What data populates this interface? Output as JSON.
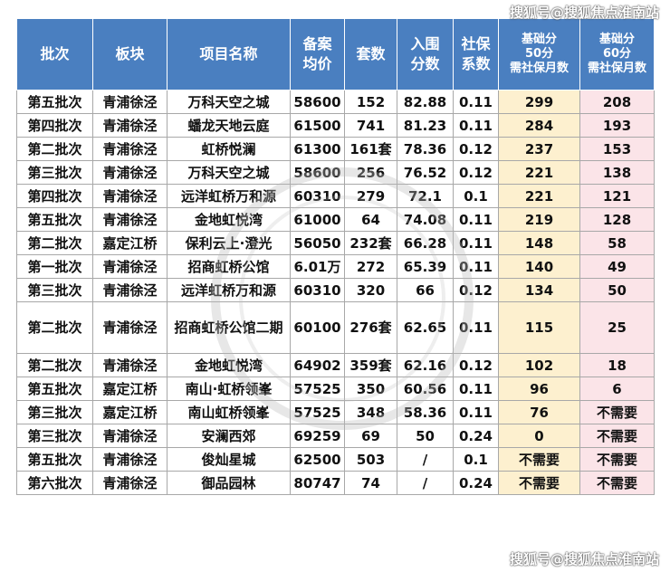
{
  "watermark": {
    "top": "搜狐号@搜狐焦点淮南站",
    "bottom": "搜狐号@搜狐焦点淮南站"
  },
  "table": {
    "headers": [
      "批次",
      "板块",
      "项目名称",
      "备案\n均价",
      "套数",
      "入围\n分数",
      "社保\n系数",
      "基础分\n50分\n需社保月数",
      "基础分\n60分\n需社保月数"
    ],
    "rows": [
      [
        "第五批次",
        "青浦徐泾",
        "万科天空之城",
        "58600",
        "152",
        "82.88",
        "0.11",
        "299",
        "208"
      ],
      [
        "第四批次",
        "青浦徐泾",
        "蟠龙天地云庭",
        "61500",
        "741",
        "81.23",
        "0.11",
        "284",
        "193"
      ],
      [
        "第二批次",
        "青浦徐泾",
        "虹桥悦澜",
        "61300",
        "161套",
        "78.36",
        "0.12",
        "237",
        "153"
      ],
      [
        "第三批次",
        "青浦徐泾",
        "万科天空之城",
        "58600",
        "256",
        "76.52",
        "0.12",
        "221",
        "138"
      ],
      [
        "第四批次",
        "青浦徐泾",
        "远洋虹桥万和源",
        "60310",
        "279",
        "72.1",
        "0.1",
        "221",
        "121"
      ],
      [
        "第五批次",
        "青浦徐泾",
        "金地虹悦湾",
        "61000",
        "64",
        "74.08",
        "0.11",
        "219",
        "128"
      ],
      [
        "第二批次",
        "嘉定江桥",
        "保利云上·澄光",
        "56050",
        "232套",
        "66.28",
        "0.11",
        "148",
        "58"
      ],
      [
        "第一批次",
        "青浦徐泾",
        "招商虹桥公馆",
        "6.01万",
        "272",
        "65.39",
        "0.11",
        "140",
        "49"
      ],
      [
        "第三批次",
        "青浦徐泾",
        "远洋虹桥万和源",
        "60310",
        "320",
        "66",
        "0.12",
        "134",
        "50"
      ],
      [
        "第二批次",
        "青浦徐泾",
        "招商虹桥公馆二期",
        "60100",
        "276套",
        "62.65",
        "0.11",
        "115",
        "25"
      ],
      [
        "第二批次",
        "青浦徐泾",
        "金地虹悦湾",
        "64902",
        "359套",
        "62.16",
        "0.12",
        "102",
        "18"
      ],
      [
        "第五批次",
        "嘉定江桥",
        "南山·虹桥领峯",
        "57525",
        "350",
        "60.56",
        "0.11",
        "96",
        "6"
      ],
      [
        "第三批次",
        "嘉定江桥",
        "南山虹桥领峯",
        "57525",
        "348",
        "58.36",
        "0.11",
        "76",
        "不需要"
      ],
      [
        "第三批次",
        "青浦徐泾",
        "安澜西郊",
        "69259",
        "69",
        "50",
        "0.24",
        "0",
        "不需要"
      ],
      [
        "第五批次",
        "青浦徐泾",
        "俊灿星城",
        "62500",
        "503",
        "/",
        "0.1",
        "不需要",
        "不需要"
      ],
      [
        "第六批次",
        "青浦徐泾",
        "御品园林",
        "80747",
        "74",
        "/",
        "0.24",
        "不需要",
        "不需要"
      ]
    ]
  },
  "colors": {
    "header_bg": "#4a7fc0",
    "col7_bg": "#fdf0cf",
    "col8_bg": "#fbe4e8"
  }
}
